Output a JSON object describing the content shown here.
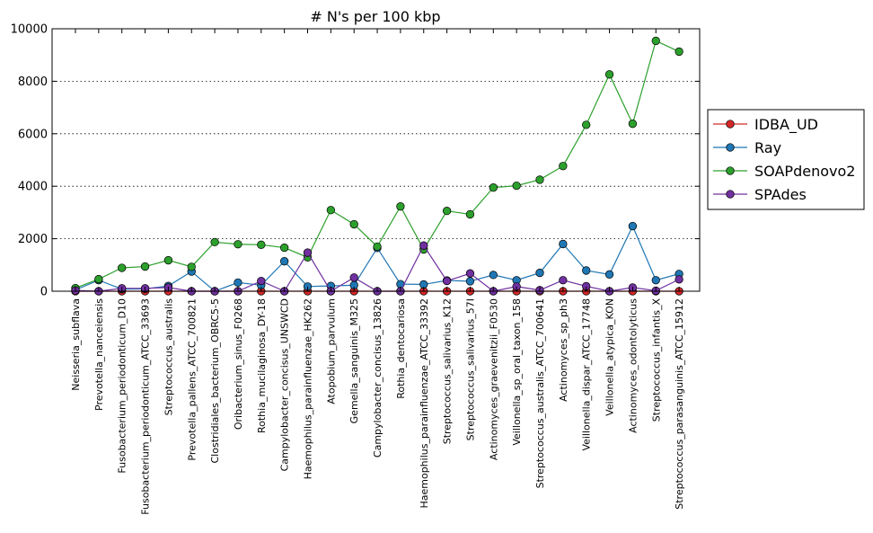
{
  "chart_data": {
    "type": "line",
    "title": "# N's per 100 kbp",
    "xlabel": "",
    "ylabel": "",
    "ylim": [
      0,
      10000
    ],
    "yticks": [
      0,
      2000,
      4000,
      6000,
      8000,
      10000
    ],
    "grid": "horizontal-dotted",
    "legend_position": "right",
    "categories": [
      "Neisseria_subflava",
      "Prevotella_nanceiensis",
      "Fusobacterium_periodonticum_D10",
      "Fusobacterium_periodonticum_ATCC_33693",
      "Streptococcus_australis",
      "Prevotella_pallens_ATCC_700821",
      "Clostridiales_bacterium_OBRC5-5",
      "Oribacterium_sinus_F0268",
      "Rothia_mucilaginosa_DY-18",
      "Campylobacter_concisus_UNSWCD",
      "Haemophilus_parainfluenzae_HK262",
      "Atopobium_parvulum",
      "Gemella_sanguinis_M325",
      "Campylobacter_concisus_13826",
      "Rothia_dentocariosa",
      "Haemophilus_parainfluenzae_ATCC_33392",
      "Streptococcus_salivarius_K12",
      "Streptococcus_salivarius_57I",
      "Actinomyces_graevenitzii_F0530",
      "Veillonella_sp_oral_taxon_158",
      "Streptococcus_australis_ATCC_700641",
      "Actinomyces_sp_ph3",
      "Veillonella_dispar_ATCC_17748",
      "Veillonella_atypica_KON",
      "Actinomyces_odontolyticus",
      "Streptococcus_infantis_X",
      "Streptococcus_parasanguinis_ATCC_15912"
    ],
    "series": [
      {
        "name": "IDBA_UD",
        "color": "#d62728",
        "values": [
          0,
          0,
          0,
          0,
          0,
          0,
          0,
          0,
          0,
          0,
          0,
          0,
          0,
          0,
          0,
          0,
          0,
          0,
          0,
          0,
          0,
          0,
          0,
          0,
          0,
          0,
          0
        ]
      },
      {
        "name": "Ray",
        "color": "#1f77b4",
        "values": [
          50,
          420,
          80,
          90,
          200,
          750,
          0,
          330,
          230,
          1140,
          180,
          200,
          230,
          1650,
          270,
          260,
          410,
          380,
          620,
          420,
          700,
          1800,
          790,
          640,
          2480,
          420,
          660
        ]
      },
      {
        "name": "SOAPdenovo2",
        "color": "#2ca02c",
        "values": [
          120,
          460,
          890,
          940,
          1180,
          930,
          1870,
          1790,
          1770,
          1660,
          1290,
          3090,
          2550,
          1700,
          3230,
          1590,
          3060,
          2930,
          3950,
          4020,
          4250,
          4770,
          6340,
          8260,
          6380,
          9540,
          9130
        ]
      },
      {
        "name": "SPAdes",
        "color": "#7030a0",
        "values": [
          30,
          0,
          110,
          110,
          140,
          0,
          0,
          0,
          390,
          0,
          1470,
          0,
          520,
          0,
          0,
          1740,
          390,
          680,
          0,
          180,
          40,
          420,
          190,
          0,
          140,
          20,
          450
        ]
      }
    ]
  }
}
